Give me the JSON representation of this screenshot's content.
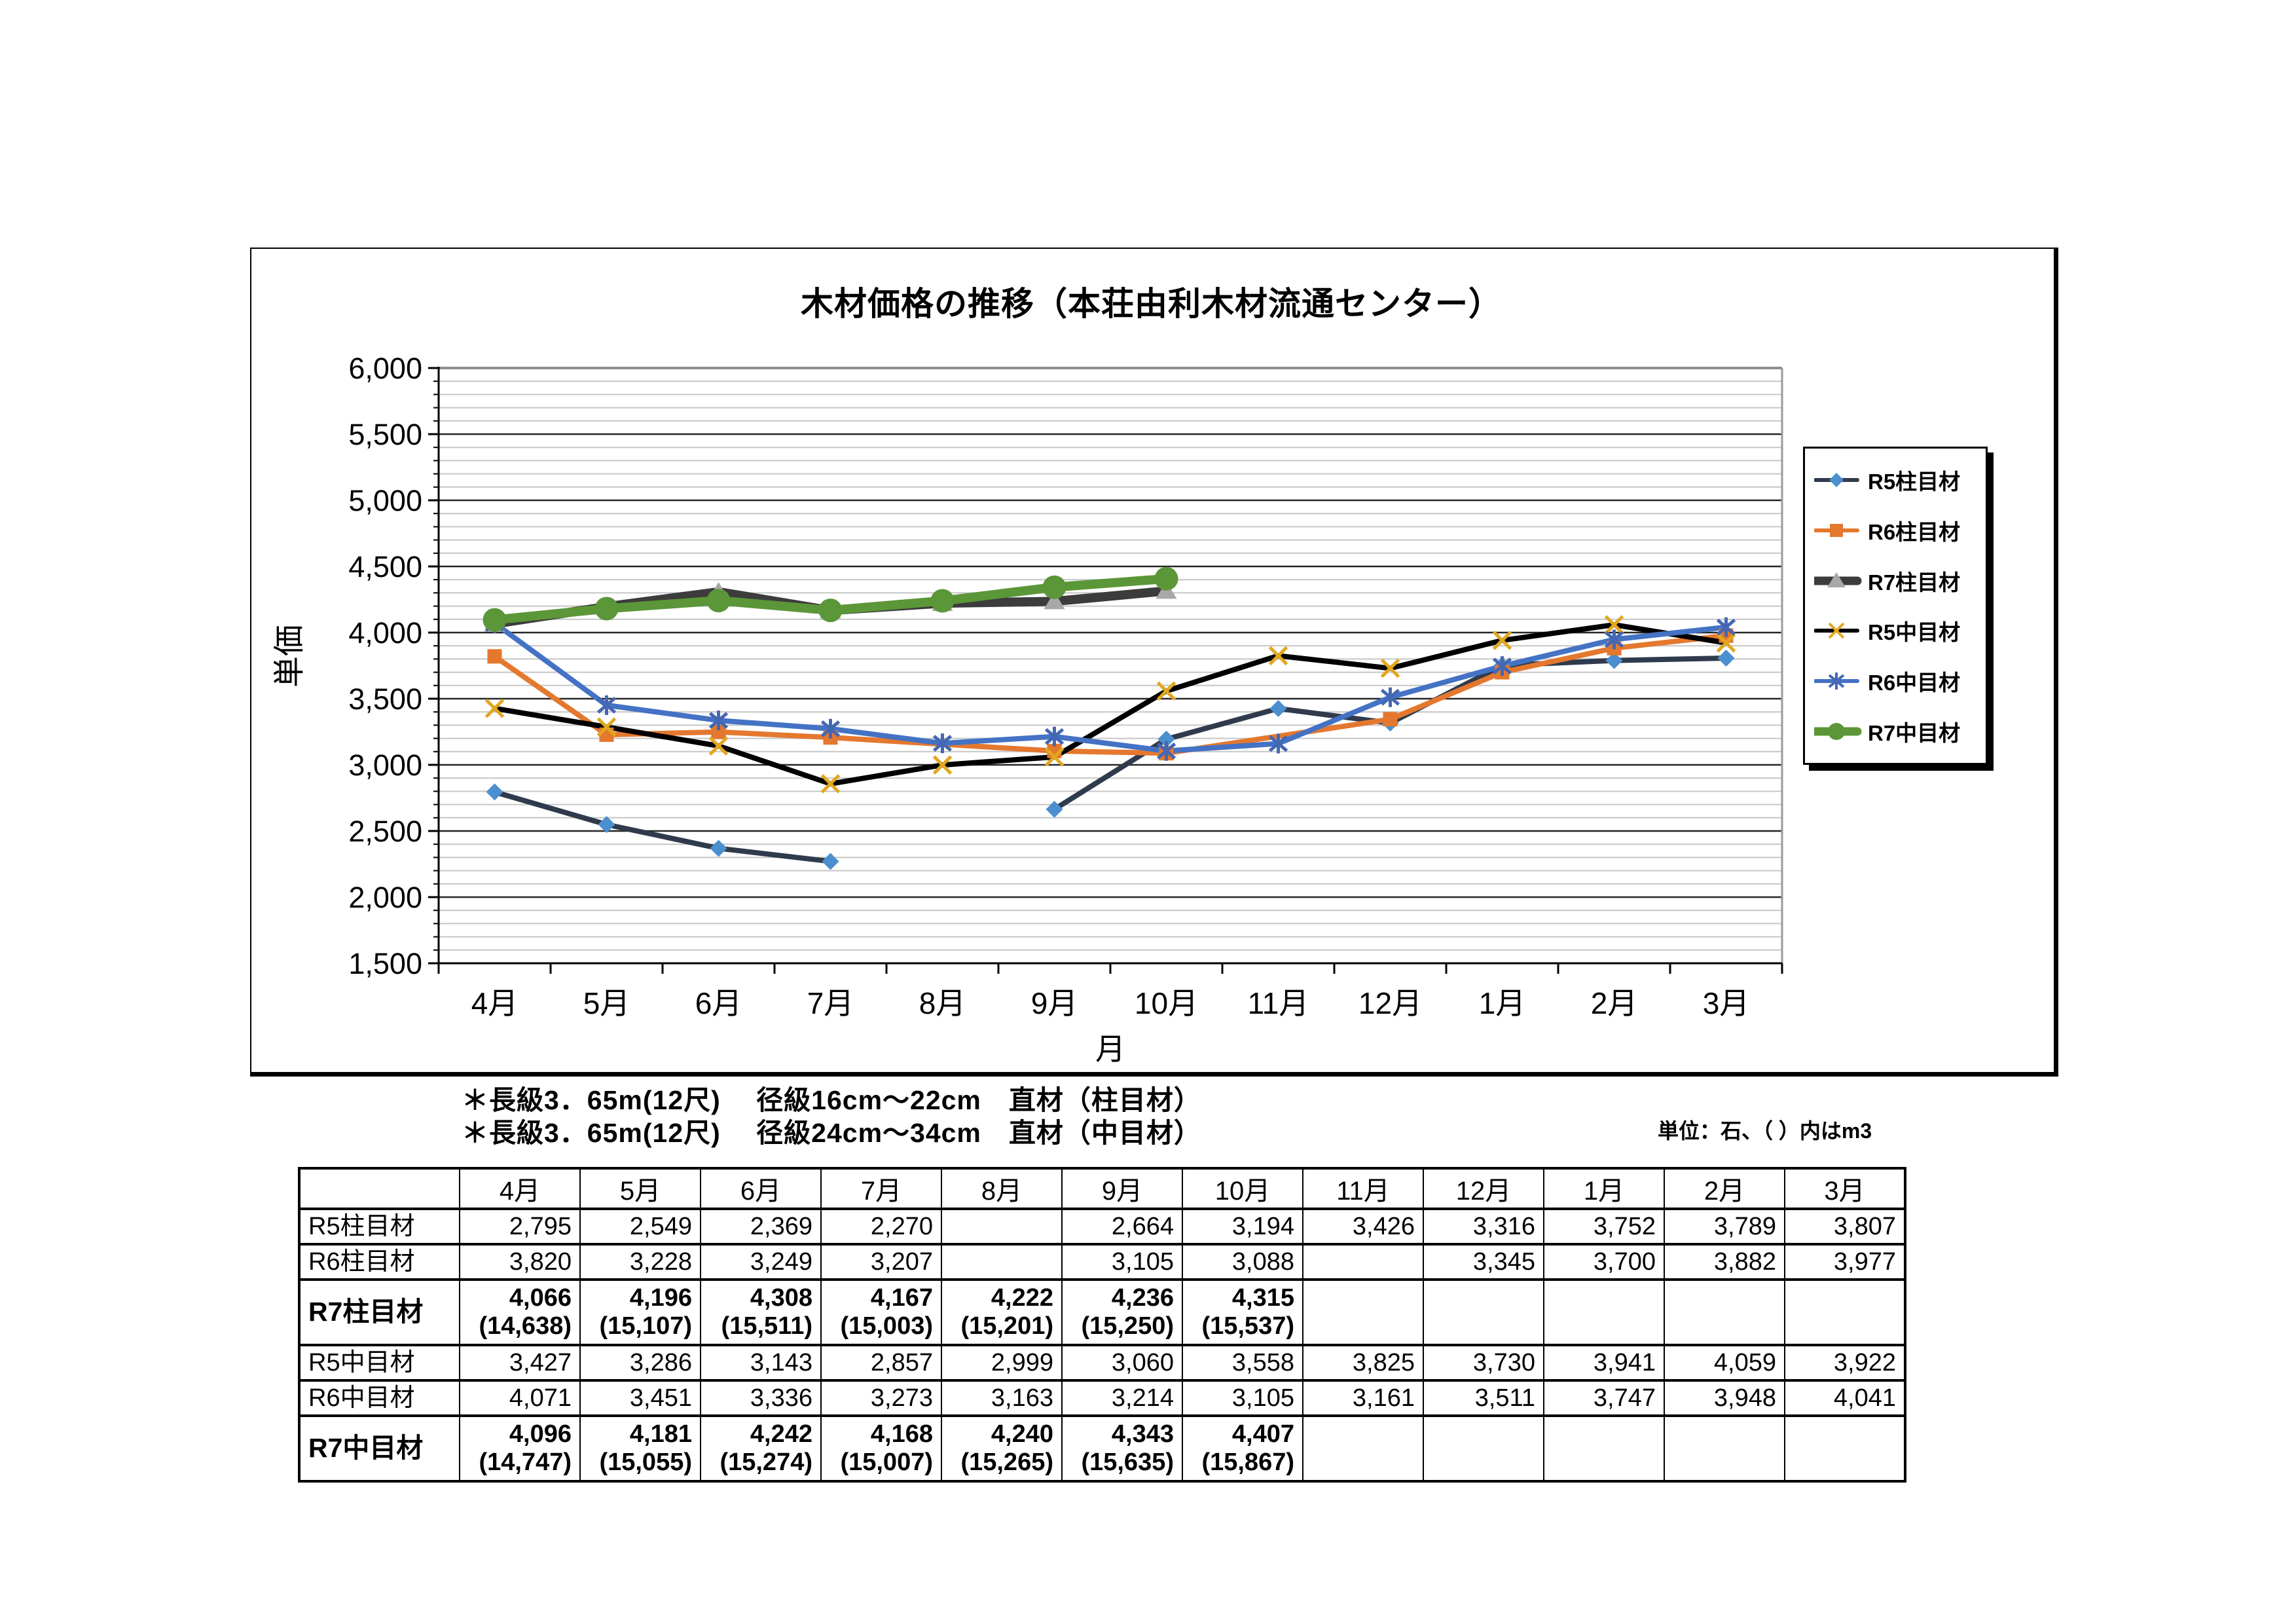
{
  "chart": {
    "title": "木材価格の推移（本荘由利木材流通センター）",
    "y_axis_title": "単価",
    "x_axis_title": "月",
    "footnotes": [
      "＊長級3．65m(12尺)　 径級16cm～22cm　直材（柱目材）",
      "＊長級3．65m(12尺)　 径級24cm～34cm　直材（中目材）"
    ],
    "unit_note": "単位：石、（ ）内はm3"
  },
  "chart_data": {
    "type": "line",
    "title": "木材価格の推移（本荘由利木材流通センター）",
    "xlabel": "月",
    "ylabel": "単価",
    "ylim": [
      1500,
      6000
    ],
    "y_major_step": 500,
    "y_minor_step": 100,
    "grid": "major+minor",
    "legend_position": "right",
    "y_tick_labels": [
      "1,500",
      "2,000",
      "2,500",
      "3,000",
      "3,500",
      "4,000",
      "4,500",
      "5,000",
      "5,500",
      "6,000"
    ],
    "categories": [
      "4月",
      "5月",
      "6月",
      "7月",
      "8月",
      "9月",
      "10月",
      "11月",
      "12月",
      "1月",
      "2月",
      "3月"
    ],
    "series": [
      {
        "name": "R5柱目材",
        "line_color": "#2F3B4C",
        "marker": "diamond",
        "marker_color": "#4C8FCE",
        "thick": false,
        "span_gaps": false,
        "values": [
          2795,
          2549,
          2369,
          2270,
          null,
          2664,
          3194,
          3426,
          3316,
          3752,
          3789,
          3807
        ]
      },
      {
        "name": "R6柱目材",
        "line_color": "#E4782E",
        "marker": "square",
        "marker_color": "#E4782E",
        "thick": false,
        "span_gaps": true,
        "values": [
          3820,
          3228,
          3249,
          3207,
          null,
          3105,
          3088,
          null,
          3345,
          3700,
          3882,
          3977
        ]
      },
      {
        "name": "R7柱目材",
        "line_color": "#3C3C3C",
        "marker": "triangle",
        "marker_color": "#A8A8A8",
        "thick": true,
        "span_gaps": true,
        "values": [
          4066,
          4196,
          4308,
          4167,
          4222,
          4236,
          4315,
          null,
          null,
          null,
          null,
          null
        ]
      },
      {
        "name": "R5中目材",
        "line_color": "#000000",
        "marker": "x",
        "marker_color": "#E2A71E",
        "thick": false,
        "span_gaps": true,
        "values": [
          3427,
          3286,
          3143,
          2857,
          2999,
          3060,
          3558,
          3825,
          3730,
          3941,
          4059,
          3922
        ]
      },
      {
        "name": "R6中目材",
        "line_color": "#4472C4",
        "marker": "asterisk",
        "marker_color": "#4467B4",
        "thick": false,
        "span_gaps": true,
        "values": [
          4071,
          3451,
          3336,
          3273,
          3163,
          3214,
          3105,
          3161,
          3511,
          3747,
          3948,
          4041
        ]
      },
      {
        "name": "R7中目材",
        "line_color": "#5B9638",
        "marker": "circle",
        "marker_color": "#5B9638",
        "thick": true,
        "span_gaps": true,
        "values": [
          4096,
          4181,
          4242,
          4168,
          4240,
          4343,
          4407,
          null,
          null,
          null,
          null,
          null
        ]
      }
    ]
  },
  "table": {
    "columns": [
      "",
      "4月",
      "5月",
      "6月",
      "7月",
      "8月",
      "9月",
      "10月",
      "11月",
      "12月",
      "1月",
      "2月",
      "3月"
    ],
    "rows": [
      {
        "label": "R5柱目材",
        "bold": false,
        "tall": false,
        "cells": [
          "2,795",
          "2,549",
          "2,369",
          "2,270",
          "",
          "2,664",
          "3,194",
          "3,426",
          "3,316",
          "3,752",
          "3,789",
          "3,807"
        ]
      },
      {
        "label": "R6柱目材",
        "bold": false,
        "tall": false,
        "cells": [
          "3,820",
          "3,228",
          "3,249",
          "3,207",
          "",
          "3,105",
          "3,088",
          "",
          "3,345",
          "3,700",
          "3,882",
          "3,977"
        ]
      },
      {
        "label": "R7柱目材",
        "bold": true,
        "tall": true,
        "cells": [
          "4,066\n(14,638)",
          "4,196\n(15,107)",
          "4,308\n(15,511)",
          "4,167\n(15,003)",
          "4,222\n(15,201)",
          "4,236\n(15,250)",
          "4,315\n(15,537)",
          "",
          "",
          "",
          "",
          ""
        ]
      },
      {
        "label": "R5中目材",
        "bold": false,
        "tall": false,
        "cells": [
          "3,427",
          "3,286",
          "3,143",
          "2,857",
          "2,999",
          "3,060",
          "3,558",
          "3,825",
          "3,730",
          "3,941",
          "4,059",
          "3,922"
        ]
      },
      {
        "label": "R6中目材",
        "bold": false,
        "tall": false,
        "cells": [
          "4,071",
          "3,451",
          "3,336",
          "3,273",
          "3,163",
          "3,214",
          "3,105",
          "3,161",
          "3,511",
          "3,747",
          "3,948",
          "4,041"
        ]
      },
      {
        "label": "R7中目材",
        "bold": true,
        "tall": true,
        "cells": [
          "4,096\n(14,747)",
          "4,181\n(15,055)",
          "4,242\n(15,274)",
          "4,168\n(15,007)",
          "4,240\n(15,265)",
          "4,343\n(15,635)",
          "4,407\n(15,867)",
          "",
          "",
          "",
          "",
          ""
        ]
      }
    ]
  }
}
